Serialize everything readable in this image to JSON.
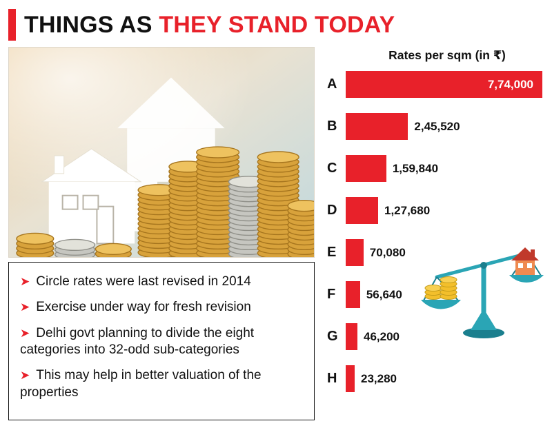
{
  "title": {
    "black": "THINGS AS ",
    "red": "THEY STAND TODAY"
  },
  "bullets": [
    "Circle rates were last revised in 2014",
    "Exercise under way for fresh revision",
    "Delhi govt planning to divide the eight categories into 32-odd sub-categories",
    "This may help in better valuation of the properties"
  ],
  "chart_data": {
    "type": "bar",
    "orientation": "horizontal",
    "title": "Rates per sqm (in ₹)",
    "categories": [
      "A",
      "B",
      "C",
      "D",
      "E",
      "F",
      "G",
      "H"
    ],
    "values": [
      774000,
      245520,
      159840,
      127680,
      70080,
      56640,
      46200,
      23280
    ],
    "value_labels": [
      "7,74,000",
      "2,45,520",
      "1,59,840",
      "1,27,680",
      "70,080",
      "56,640",
      "46,200",
      "23,280"
    ],
    "xlim": [
      0,
      774000
    ],
    "bar_color": "#e8212a",
    "grid": false,
    "legend": "none"
  },
  "icons": {
    "bullet_arrow": "➤",
    "balance_scale": "balance-scale-with-coins-and-house",
    "photo": "house-models-with-coin-stacks"
  },
  "colors": {
    "accent_red": "#e8212a",
    "text": "#111111",
    "scale_teal": "#2aa5b5",
    "coin_gold": "#d8a23b",
    "house_roof": "#c0392b",
    "house_wall": "#ef8a50"
  }
}
